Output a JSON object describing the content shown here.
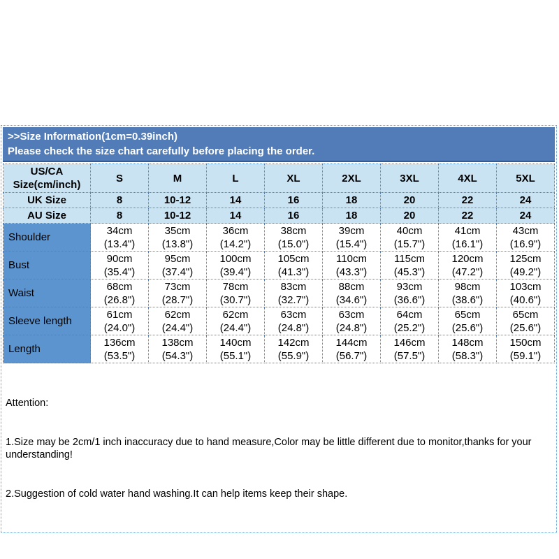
{
  "colors": {
    "band_bg": "#527cb8",
    "band_text": "#ffffff",
    "header_cell_bg": "#c9e3f3",
    "label_cell_bg": "#5b94ce",
    "grid_border": "#4f81bd",
    "outer_border": "#6f9bc6",
    "body_text": "#000000"
  },
  "header": {
    "title": ">>Size Information(1cm=0.39inch)",
    "subtitle": "Please check the size chart carefully before placing the order."
  },
  "size_table": {
    "corner": {
      "line1": "US/CA",
      "line2": "Size(cm/inch)"
    },
    "sizes": [
      "S",
      "M",
      "L",
      "XL",
      "2XL",
      "3XL",
      "4XL",
      "5XL"
    ],
    "uk": {
      "label": "UK Size",
      "values": [
        "8",
        "10-12",
        "14",
        "16",
        "18",
        "20",
        "22",
        "24"
      ]
    },
    "au": {
      "label": "AU Size",
      "values": [
        "8",
        "10-12",
        "14",
        "16",
        "18",
        "20",
        "22",
        "24"
      ]
    },
    "rows": [
      {
        "label": "Shoulder",
        "cm": [
          "34cm",
          "35cm",
          "36cm",
          "38cm",
          "39cm",
          "40cm",
          "41cm",
          "43cm"
        ],
        "inch": [
          "(13.4\")",
          "(13.8\")",
          "(14.2\")",
          "(15.0\")",
          "(15.4\")",
          "(15.7\")",
          "(16.1\")",
          "(16.9\")"
        ]
      },
      {
        "label": "Bust",
        "cm": [
          "90cm",
          "95cm",
          "100cm",
          "105cm",
          "110cm",
          "115cm",
          "120cm",
          "125cm"
        ],
        "inch": [
          "(35.4\")",
          "(37.4\")",
          "(39.4\")",
          "(41.3\")",
          "(43.3\")",
          "(45.3\")",
          "(47.2\")",
          "(49.2\")"
        ]
      },
      {
        "label": "Waist",
        "cm": [
          "68cm",
          "73cm",
          "78cm",
          "83cm",
          "88cm",
          "93cm",
          "98cm",
          "103cm"
        ],
        "inch": [
          "(26.8\")",
          "(28.7\")",
          "(30.7\")",
          "(32.7\")",
          "(34.6\")",
          "(36.6\")",
          "(38.6\")",
          "(40.6\")"
        ]
      },
      {
        "label": "Sleeve length",
        "cm": [
          "61cm",
          "62cm",
          "62cm",
          "63cm",
          "63cm",
          "64cm",
          "65cm",
          "65cm"
        ],
        "inch": [
          "(24.0\")",
          "(24.4\")",
          "(24.4\")",
          "(24.8\")",
          "(24.8\")",
          "(25.2\")",
          "(25.6\")",
          "(25.6\")"
        ]
      },
      {
        "label": "Length",
        "cm": [
          "136cm",
          "138cm",
          "140cm",
          "142cm",
          "144cm",
          "146cm",
          "148cm",
          "150cm"
        ],
        "inch": [
          "(53.5\")",
          "(54.3\")",
          "(55.1\")",
          "(55.9\")",
          "(56.7\")",
          "(57.5\")",
          "(58.3\")",
          "(59.1\")"
        ]
      }
    ]
  },
  "attention": {
    "title": "Attention:",
    "items": [
      "1.Size may be 2cm/1 inch inaccuracy due to hand measure,Color may be little different due to monitor,thanks for your\nunderstanding!",
      "2.Suggestion of cold water hand washing.It can help items keep their shape."
    ]
  }
}
